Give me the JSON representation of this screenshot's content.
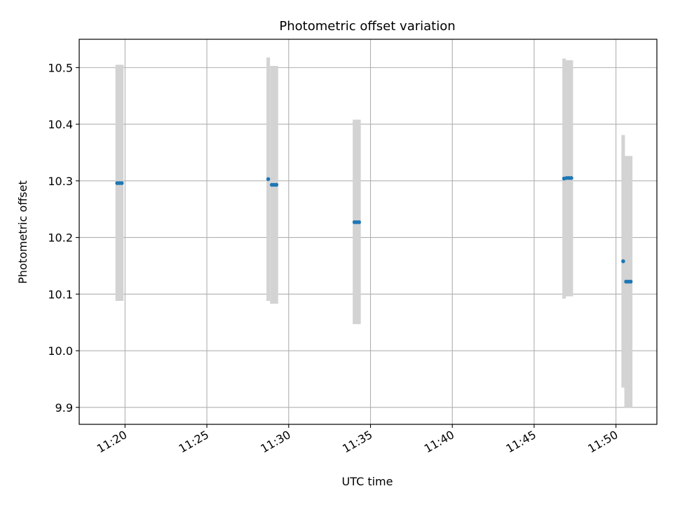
{
  "chart_data": {
    "type": "scatter",
    "title": "Photometric offset variation",
    "xlabel": "UTC time",
    "ylabel": "Photometric offset",
    "x_unit": "minutes after 11:00 UTC",
    "xlim": [
      17.2,
      52.5
    ],
    "ylim": [
      9.87,
      10.55
    ],
    "grid": true,
    "colors": {
      "points": "#1f77b4",
      "errorbars": "#d3d3d3",
      "grid": "#b0b0b0",
      "axes": "#000000"
    },
    "xticks": [
      {
        "value": 20,
        "label": "11:20"
      },
      {
        "value": 25,
        "label": "11:25"
      },
      {
        "value": 30,
        "label": "11:30"
      },
      {
        "value": 35,
        "label": "11:35"
      },
      {
        "value": 40,
        "label": "11:40"
      },
      {
        "value": 45,
        "label": "11:45"
      },
      {
        "value": 50,
        "label": "11:50"
      }
    ],
    "yticks": [
      {
        "value": 9.9,
        "label": "9.9"
      },
      {
        "value": 10.0,
        "label": "10.0"
      },
      {
        "value": 10.1,
        "label": "10.1"
      },
      {
        "value": 10.2,
        "label": "10.2"
      },
      {
        "value": 10.3,
        "label": "10.3"
      },
      {
        "value": 10.4,
        "label": "10.4"
      },
      {
        "value": 10.5,
        "label": "10.5"
      }
    ],
    "points": [
      {
        "x": 19.52,
        "y": 10.296,
        "yerr_low": 10.088,
        "yerr_high": 10.505
      },
      {
        "x": 19.66,
        "y": 10.296,
        "yerr_low": 10.088,
        "yerr_high": 10.505
      },
      {
        "x": 19.8,
        "y": 10.296,
        "yerr_low": 10.088,
        "yerr_high": 10.505
      },
      {
        "x": 28.75,
        "y": 10.303,
        "yerr_low": 10.088,
        "yerr_high": 10.518
      },
      {
        "x": 28.97,
        "y": 10.293,
        "yerr_low": 10.083,
        "yerr_high": 10.503
      },
      {
        "x": 29.11,
        "y": 10.293,
        "yerr_low": 10.083,
        "yerr_high": 10.503
      },
      {
        "x": 29.25,
        "y": 10.293,
        "yerr_low": 10.083,
        "yerr_high": 10.503
      },
      {
        "x": 34.02,
        "y": 10.227,
        "yerr_low": 10.047,
        "yerr_high": 10.408
      },
      {
        "x": 34.16,
        "y": 10.227,
        "yerr_low": 10.047,
        "yerr_high": 10.408
      },
      {
        "x": 34.3,
        "y": 10.227,
        "yerr_low": 10.047,
        "yerr_high": 10.408
      },
      {
        "x": 46.83,
        "y": 10.304,
        "yerr_low": 10.092,
        "yerr_high": 10.516
      },
      {
        "x": 46.99,
        "y": 10.305,
        "yerr_low": 10.096,
        "yerr_high": 10.513
      },
      {
        "x": 47.13,
        "y": 10.305,
        "yerr_low": 10.096,
        "yerr_high": 10.513
      },
      {
        "x": 47.27,
        "y": 10.305,
        "yerr_low": 10.096,
        "yerr_high": 10.513
      },
      {
        "x": 50.44,
        "y": 10.158,
        "yerr_low": 9.935,
        "yerr_high": 10.381
      },
      {
        "x": 50.62,
        "y": 10.122,
        "yerr_low": 9.9,
        "yerr_high": 10.344
      },
      {
        "x": 50.76,
        "y": 10.122,
        "yerr_low": 9.9,
        "yerr_high": 10.344
      },
      {
        "x": 50.9,
        "y": 10.122,
        "yerr_low": 9.9,
        "yerr_high": 10.344
      }
    ]
  }
}
